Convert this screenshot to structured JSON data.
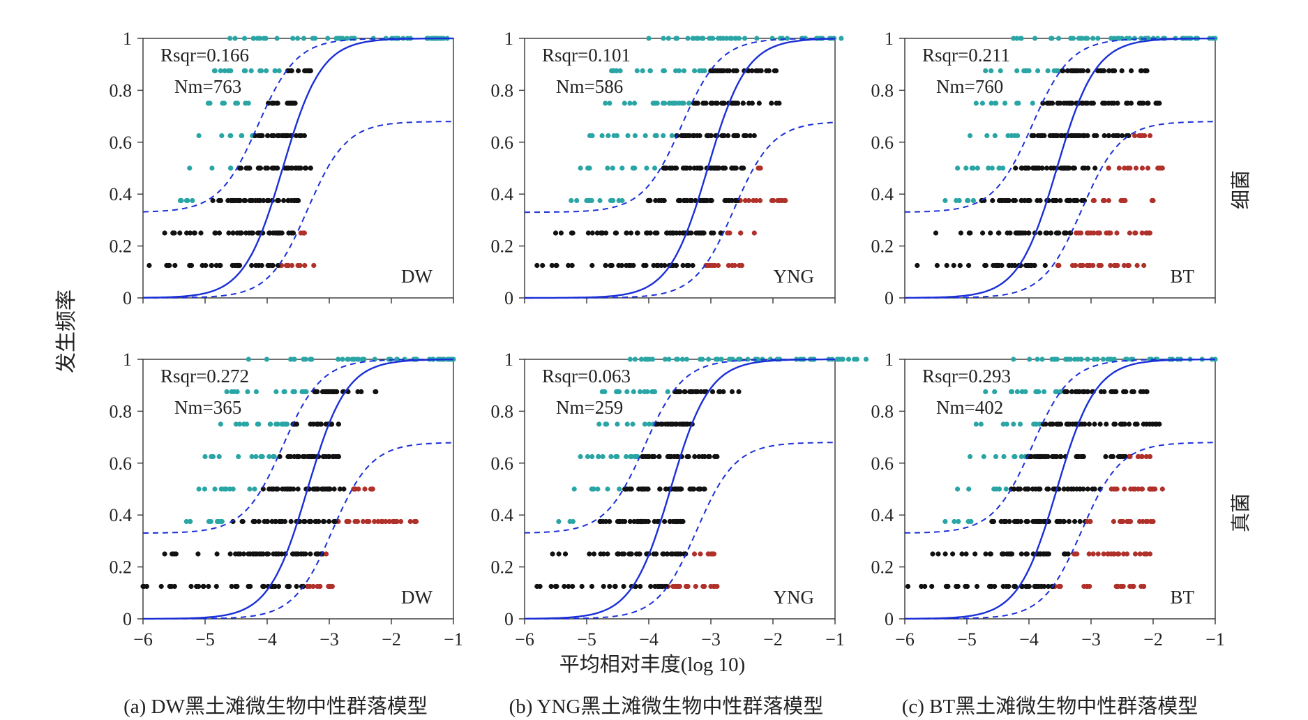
{
  "figure": {
    "ylabel": "发生频率",
    "xlabel": "平均相对丰度(log 10)",
    "row_labels": [
      "细菌",
      "真菌"
    ],
    "captions": [
      "(a) DW黑土滩微生物中性群落模型",
      "(b) YNG黑土滩微生物中性群落模型",
      "(c) BT黑土滩微生物中性群落模型"
    ]
  },
  "colors": {
    "above": "#2aa5a5",
    "neutral": "#111111",
    "below": "#b0302a",
    "fit": "#1a2fd6",
    "ci": "#1a2fd6"
  },
  "chart_data": [
    {
      "type": "scatter",
      "row": 0,
      "col": 0,
      "label": "DW",
      "rsqr": "Rsqr=0.166",
      "nm": "Nm=763",
      "xlim": [
        -6,
        -1
      ],
      "ylim": [
        0,
        1
      ],
      "xticks": [
        "−6",
        "−5",
        "−4",
        "−3",
        "−2",
        "−1"
      ],
      "yticks": [
        "0",
        "0.2",
        "0.4",
        "0.6",
        "0.8",
        "1"
      ],
      "center": -3.75,
      "ci_shift": 0.4,
      "ci_upper_floor": 0.33,
      "ci_lower_ceiling": 0.68,
      "levels": [
        {
          "y": 0.125,
          "xmin": -5.9,
          "xmax": -3.25
        },
        {
          "y": 0.25,
          "xmin": -5.65,
          "xmax": -3.4
        },
        {
          "y": 0.375,
          "xmin": -5.4,
          "xmax": -3.5
        },
        {
          "y": 0.5,
          "xmin": -5.25,
          "xmax": -3.3
        },
        {
          "y": 0.625,
          "xmin": -5.1,
          "xmax": -3.4
        },
        {
          "y": 0.75,
          "xmin": -4.95,
          "xmax": -3.55
        },
        {
          "y": 0.875,
          "xmin": -4.85,
          "xmax": -3.3
        },
        {
          "y": 1.0,
          "xmin": -4.6,
          "xmax": -1.1
        }
      ]
    },
    {
      "type": "scatter",
      "row": 0,
      "col": 1,
      "label": "YNG",
      "rsqr": "Rsqr=0.101",
      "nm": "Nm=586",
      "xlim": [
        -6,
        -1
      ],
      "ylim": [
        0,
        1
      ],
      "xticks": [
        "−6",
        "−5",
        "−4",
        "−3",
        "−2",
        "−1"
      ],
      "yticks": [
        "0",
        "0.2",
        "0.4",
        "0.6",
        "0.8",
        "1"
      ],
      "center": -3.05,
      "ci_shift": 0.42,
      "ci_upper_floor": 0.33,
      "ci_lower_ceiling": 0.68,
      "levels": [
        {
          "y": 0.125,
          "xmin": -5.8,
          "xmax": -2.5
        },
        {
          "y": 0.25,
          "xmin": -5.5,
          "xmax": -2.3
        },
        {
          "y": 0.375,
          "xmin": -5.25,
          "xmax": -1.8
        },
        {
          "y": 0.5,
          "xmin": -5.1,
          "xmax": -2.2
        },
        {
          "y": 0.625,
          "xmin": -4.95,
          "xmax": -2.3
        },
        {
          "y": 0.75,
          "xmin": -4.7,
          "xmax": -1.9
        },
        {
          "y": 0.875,
          "xmin": -4.6,
          "xmax": -1.95
        },
        {
          "y": 1.0,
          "xmin": -4.0,
          "xmax": -0.9
        }
      ]
    },
    {
      "type": "scatter",
      "row": 0,
      "col": 2,
      "label": "BT",
      "rsqr": "Rsqr=0.211",
      "nm": "Nm=760",
      "xlim": [
        -6,
        -1
      ],
      "ylim": [
        0,
        1
      ],
      "xticks": [
        "−6",
        "−5",
        "−4",
        "−3",
        "−2",
        "−1"
      ],
      "yticks": [
        "0",
        "0.2",
        "0.4",
        "0.6",
        "0.8",
        "1"
      ],
      "center": -3.55,
      "ci_shift": 0.4,
      "ci_upper_floor": 0.33,
      "ci_lower_ceiling": 0.68,
      "levels": [
        {
          "y": 0.125,
          "xmin": -5.8,
          "xmax": -2.15
        },
        {
          "y": 0.25,
          "xmin": -5.5,
          "xmax": -2.05
        },
        {
          "y": 0.375,
          "xmin": -5.35,
          "xmax": -2.0
        },
        {
          "y": 0.5,
          "xmin": -5.15,
          "xmax": -1.85
        },
        {
          "y": 0.625,
          "xmin": -4.95,
          "xmax": -2.05
        },
        {
          "y": 0.75,
          "xmin": -4.85,
          "xmax": -1.9
        },
        {
          "y": 0.875,
          "xmin": -4.7,
          "xmax": -2.1
        },
        {
          "y": 1.0,
          "xmin": -4.25,
          "xmax": -1.0
        }
      ]
    },
    {
      "type": "scatter",
      "row": 1,
      "col": 0,
      "label": "DW",
      "rsqr": "Rsqr=0.272",
      "nm": "Nm=365",
      "xlim": [
        -6,
        -1
      ],
      "ylim": [
        0,
        1
      ],
      "xticks": [
        "−6",
        "−5",
        "−4",
        "−3",
        "−2",
        "−1"
      ],
      "yticks": [
        "0",
        "0.2",
        "0.4",
        "0.6",
        "0.8",
        "1"
      ],
      "center": -3.35,
      "ci_shift": 0.4,
      "ci_upper_floor": 0.33,
      "ci_lower_ceiling": 0.68,
      "levels": [
        {
          "y": 0.125,
          "xmin": -6.0,
          "xmax": -2.95
        },
        {
          "y": 0.25,
          "xmin": -5.65,
          "xmax": -3.05
        },
        {
          "y": 0.375,
          "xmin": -5.3,
          "xmax": -1.6
        },
        {
          "y": 0.5,
          "xmin": -5.1,
          "xmax": -2.3
        },
        {
          "y": 0.625,
          "xmin": -5.0,
          "xmax": -2.85
        },
        {
          "y": 0.75,
          "xmin": -4.75,
          "xmax": -2.85
        },
        {
          "y": 0.875,
          "xmin": -4.65,
          "xmax": -2.25
        },
        {
          "y": 1.0,
          "xmin": -4.3,
          "xmax": -1.0
        }
      ]
    },
    {
      "type": "scatter",
      "row": 1,
      "col": 1,
      "label": "YNG",
      "rsqr": "Rsqr=0.063",
      "nm": "Nm=259",
      "xlim": [
        -6,
        -1
      ],
      "ylim": [
        0,
        1
      ],
      "xticks": [
        "−6",
        "−5",
        "−4",
        "−3",
        "−2",
        "−1"
      ],
      "yticks": [
        "0",
        "0.2",
        "0.4",
        "0.6",
        "0.8",
        "1"
      ],
      "center": -3.65,
      "ci_shift": 0.42,
      "ci_upper_floor": 0.33,
      "ci_lower_ceiling": 0.68,
      "levels": [
        {
          "y": 0.125,
          "xmin": -5.8,
          "xmax": -2.9
        },
        {
          "y": 0.25,
          "xmin": -5.55,
          "xmax": -2.95
        },
        {
          "y": 0.375,
          "xmin": -5.45,
          "xmax": -3.45
        },
        {
          "y": 0.5,
          "xmin": -5.2,
          "xmax": -3.1
        },
        {
          "y": 0.625,
          "xmin": -5.1,
          "xmax": -2.9
        },
        {
          "y": 0.75,
          "xmin": -4.8,
          "xmax": -3.3
        },
        {
          "y": 0.875,
          "xmin": -4.75,
          "xmax": -2.55
        },
        {
          "y": 1.0,
          "xmin": -4.3,
          "xmax": -0.5
        }
      ]
    },
    {
      "type": "scatter",
      "row": 1,
      "col": 2,
      "label": "BT",
      "rsqr": "Rsqr=0.293",
      "nm": "Nm=402",
      "xlim": [
        -6,
        -1
      ],
      "ylim": [
        0,
        1
      ],
      "xticks": [
        "−6",
        "−5",
        "−4",
        "−3",
        "−2",
        "−1"
      ],
      "yticks": [
        "0",
        "0.2",
        "0.4",
        "0.6",
        "0.8",
        "1"
      ],
      "center": -3.55,
      "ci_shift": 0.4,
      "ci_upper_floor": 0.33,
      "ci_lower_ceiling": 0.68,
      "levels": [
        {
          "y": 0.125,
          "xmin": -5.95,
          "xmax": -2.15
        },
        {
          "y": 0.25,
          "xmin": -5.55,
          "xmax": -2.05
        },
        {
          "y": 0.375,
          "xmin": -5.35,
          "xmax": -2.0
        },
        {
          "y": 0.5,
          "xmin": -5.15,
          "xmax": -1.85
        },
        {
          "y": 0.625,
          "xmin": -4.95,
          "xmax": -2.05
        },
        {
          "y": 0.75,
          "xmin": -4.85,
          "xmax": -1.9
        },
        {
          "y": 0.875,
          "xmin": -4.7,
          "xmax": -2.1
        },
        {
          "y": 1.0,
          "xmin": -4.25,
          "xmax": -1.0
        }
      ]
    }
  ]
}
